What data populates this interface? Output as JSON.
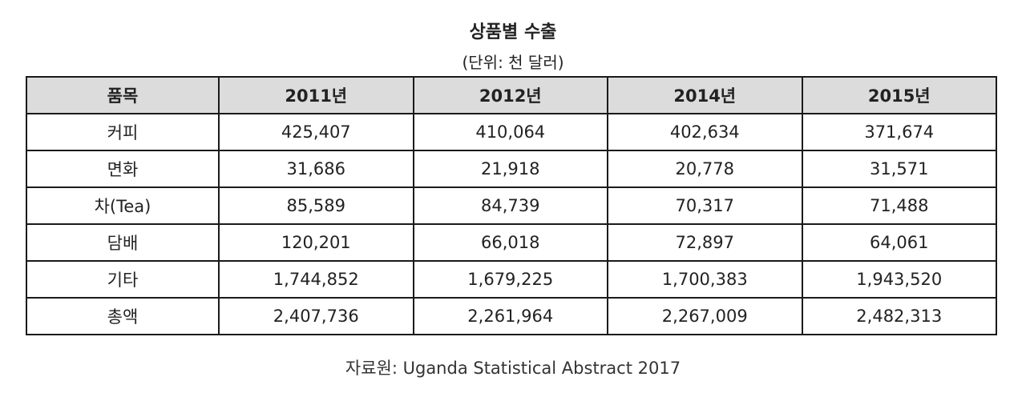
{
  "title": "상품별 수출",
  "unit": "(단위: 천 달러)",
  "columns": [
    "품목",
    "2011년",
    "2012년",
    "2014년",
    "2015년"
  ],
  "rows": [
    [
      "커피",
      "425,407",
      "410,064",
      "402,634",
      "371,674"
    ],
    [
      "면화",
      "31,686",
      "21,918",
      "20,778",
      "31,571"
    ],
    [
      "차(Tea)",
      "85,589",
      "84,739",
      "70,317",
      "71,488"
    ],
    [
      "담배",
      "120,201",
      "66,018",
      "72,897",
      "64,061"
    ],
    [
      "기타",
      "1,744,852",
      "1,679,225",
      "1,700,383",
      "1,943,520"
    ],
    [
      "총액",
      "2,407,736",
      "2,261,964",
      "2,267,009",
      "2,482,313"
    ]
  ],
  "source": "자료원: Uganda Statistical Abstract 2017",
  "colors": {
    "header_bg": "#dcdcdc",
    "border": "#1a1a1a",
    "text": "#222222"
  }
}
